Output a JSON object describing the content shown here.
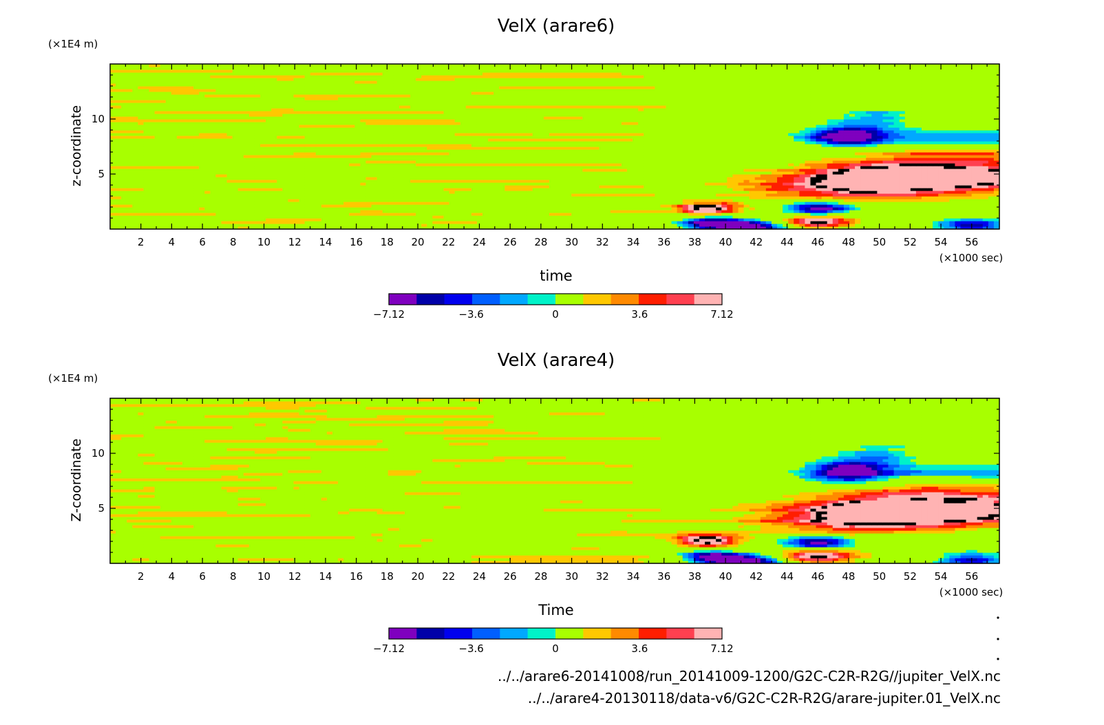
{
  "chart_data": [
    {
      "type": "heatmap",
      "title": "VelX (arare6)",
      "xlabel": "time",
      "ylabel": "z-coordinate",
      "x_unit": "(×1000 sec)",
      "y_unit": "(×1E4 m)",
      "xlim": [
        0,
        57.8
      ],
      "ylim": [
        0,
        15
      ],
      "x_ticks": [
        2,
        4,
        6,
        8,
        10,
        12,
        14,
        16,
        18,
        20,
        22,
        24,
        26,
        28,
        30,
        32,
        34,
        36,
        38,
        40,
        42,
        44,
        46,
        48,
        50,
        52,
        54,
        56
      ],
      "y_ticks": [
        5,
        10
      ],
      "colorbar": {
        "levels": [
          -7.12,
          -6.17,
          -5.22,
          -4.27,
          -3.32,
          -2.37,
          -1.42,
          1.42,
          2.37,
          3.32,
          4.27,
          5.22,
          6.17,
          7.12
        ],
        "tick_labels": [
          "-7.12",
          "-3.6",
          "0",
          "3.6",
          "7.12"
        ]
      },
      "features": [
        {
          "x": 38.5,
          "z": 1.9,
          "value": 7.12
        },
        {
          "x": 39.0,
          "z": 0.6,
          "value": -7.12
        },
        {
          "x": 41.5,
          "z": 0.2,
          "value": -7.12
        },
        {
          "x": 46.0,
          "z": 1.9,
          "value": -6.5
        },
        {
          "x": 46.0,
          "z": 0.7,
          "value": 5.5
        },
        {
          "x": 52.0,
          "z": 4.9,
          "value": 6.0
        },
        {
          "x": 49.0,
          "z": 3.8,
          "value": 4.3
        },
        {
          "x": 48.0,
          "z": 8.5,
          "value": -4.5
        },
        {
          "x": 50.0,
          "z": 10.2,
          "value": -2.5
        },
        {
          "x": 55.0,
          "z": 6.5,
          "value": 2.8
        },
        {
          "x": 56.0,
          "z": 0.4,
          "value": -5.0
        }
      ]
    },
    {
      "type": "heatmap",
      "title": "VelX (arare4)",
      "xlabel": "Time",
      "ylabel": "Z-coordinate",
      "x_unit": "(×1000 sec)",
      "y_unit": "(×1E4 m)",
      "xlim": [
        0,
        57.8
      ],
      "ylim": [
        0,
        15
      ],
      "x_ticks": [
        2,
        4,
        6,
        8,
        10,
        12,
        14,
        16,
        18,
        20,
        22,
        24,
        26,
        28,
        30,
        32,
        34,
        36,
        38,
        40,
        42,
        44,
        46,
        48,
        50,
        52,
        54,
        56
      ],
      "y_ticks": [
        5,
        10
      ],
      "colorbar": {
        "levels": [
          -7.12,
          -6.17,
          -5.22,
          -4.27,
          -3.32,
          -2.37,
          -1.42,
          1.42,
          2.37,
          3.32,
          4.27,
          5.22,
          6.17,
          7.12
        ],
        "tick_labels": [
          "-7.12",
          "-3.6",
          "0",
          "3.6",
          "7.12"
        ]
      },
      "features": [
        {
          "x": 38.5,
          "z": 2.1,
          "value": 7.0
        },
        {
          "x": 39.0,
          "z": 0.6,
          "value": -7.0
        },
        {
          "x": 41.5,
          "z": 0.2,
          "value": -7.0
        },
        {
          "x": 46.0,
          "z": 1.9,
          "value": -6.2
        },
        {
          "x": 46.0,
          "z": 0.7,
          "value": 5.3
        },
        {
          "x": 52.0,
          "z": 5.0,
          "value": 6.2
        },
        {
          "x": 49.0,
          "z": 3.9,
          "value": 4.3
        },
        {
          "x": 48.0,
          "z": 8.4,
          "value": -4.7
        },
        {
          "x": 50.0,
          "z": 10.0,
          "value": -2.5
        },
        {
          "x": 55.0,
          "z": 6.5,
          "value": 2.8
        },
        {
          "x": 56.0,
          "z": 0.4,
          "value": -5.0
        }
      ]
    }
  ],
  "palette": [
    "#7f00bf",
    "#0000a8",
    "#0000ee",
    "#005fff",
    "#00a8ff",
    "#00f2c8",
    "#a8ff00",
    "#ffc800",
    "#ff8a00",
    "#ff1e00",
    "#ff4050",
    "#ffb3b3"
  ],
  "footer": {
    "file1": "../../arare6-20141008/run_20141009-1200/G2C-C2R-R2G//jupiter_VelX.nc",
    "file2": "../../arare4-20130118/data-v6/G2C-C2R-R2G/arare-jupiter.01_VelX.nc"
  }
}
